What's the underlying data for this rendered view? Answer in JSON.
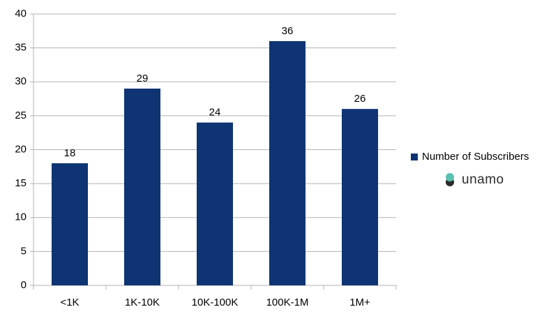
{
  "chart_data": {
    "type": "bar",
    "categories": [
      "<1K",
      "1K-10K",
      "10K-100K",
      "100K-1M",
      "1M+"
    ],
    "series": [
      {
        "name": "Number of Subscribers",
        "color": "#0e3473",
        "values": [
          18,
          29,
          24,
          36,
          26
        ]
      }
    ],
    "ylim": [
      0,
      40
    ],
    "yticks": [
      0,
      5,
      10,
      15,
      20,
      25,
      30,
      35,
      40
    ],
    "grid": true,
    "legend": "right",
    "watermark": "unamo"
  }
}
